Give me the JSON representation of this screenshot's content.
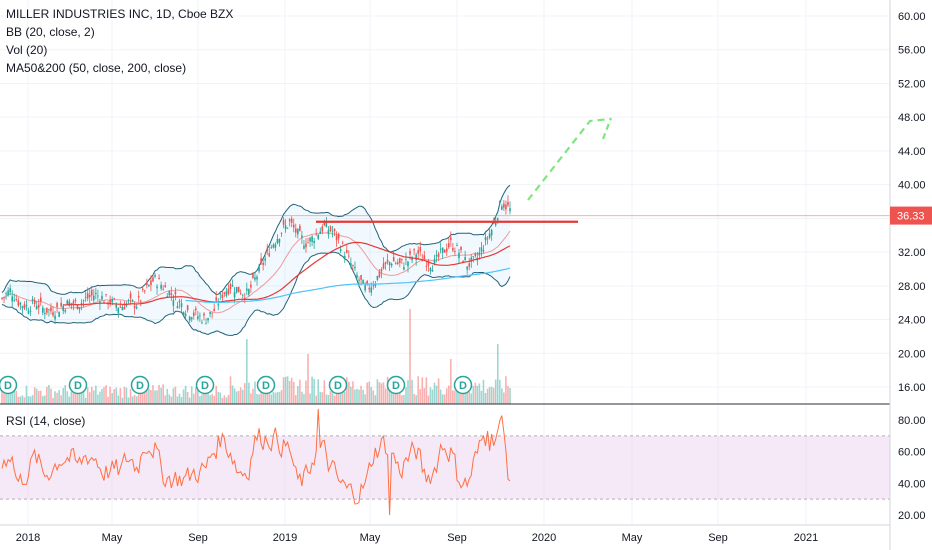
{
  "legend": {
    "title": "MILLER INDUSTRIES INC, 1D, Cboe BZX",
    "bb": "BB (20, close, 2)",
    "vol": "Vol (20)",
    "ma": "MA50&200 (50, close, 200, close)",
    "rsi": "RSI (14, close)"
  },
  "colors": {
    "candle_up": "#26a69a",
    "candle_down": "#ef5350",
    "bb_band": "#21627a",
    "bb_fill": "#2196f3",
    "ma50": "#e53935",
    "ma200": "#4fc3f7",
    "resistance": "#e53935",
    "projection": "#7ce87c",
    "rsi_line": "#ff7043",
    "rsi_band": "#e1bee7",
    "price_tag": "#ef5350"
  },
  "chart_data": [
    {
      "type": "candlestick",
      "name": "price",
      "ylim": [
        10,
        62
      ],
      "yticks": [
        "60.00",
        "56.00",
        "52.00",
        "48.00",
        "44.00",
        "40.00",
        "36.00",
        "32.00",
        "28.00",
        "24.00",
        "20.00",
        "16.00"
      ],
      "last_price": "36.33",
      "x_labels": [
        "2018",
        "May",
        "Sep",
        "2019",
        "May",
        "Sep",
        "2020",
        "May",
        "Sep",
        "2021"
      ],
      "dividend_marker": "D",
      "dividend_count": 8,
      "price_anchors": [
        26.5,
        27.5,
        26,
        25.5,
        26,
        25.2,
        25,
        25.5,
        26,
        25.8,
        26.5,
        27,
        26.5,
        26,
        25.5,
        26,
        25.8,
        27.5,
        28.8,
        28,
        27,
        26,
        25,
        24.5,
        24,
        25,
        27,
        28,
        27.5,
        27,
        29,
        31,
        33,
        34.5,
        35.5,
        34,
        33,
        34,
        35,
        34.5,
        33,
        31,
        29,
        27.5,
        28.5,
        30,
        31,
        30.5,
        31,
        32,
        31,
        30.5,
        32,
        33,
        32,
        30.5,
        31,
        33,
        35,
        38,
        37
      ],
      "resistance_level": 35.6,
      "projection_note": "dashed upward arrow toward ~47"
    },
    {
      "type": "bar",
      "name": "volume",
      "note": "daily volume bars with spikes in early 2019, May 2019 and Oct 2019"
    },
    {
      "type": "line",
      "name": "rsi",
      "ylim": [
        15,
        88
      ],
      "band": [
        30,
        70
      ],
      "yticks": [
        "80.00",
        "60.00",
        "40.00",
        "20.00"
      ]
    }
  ]
}
